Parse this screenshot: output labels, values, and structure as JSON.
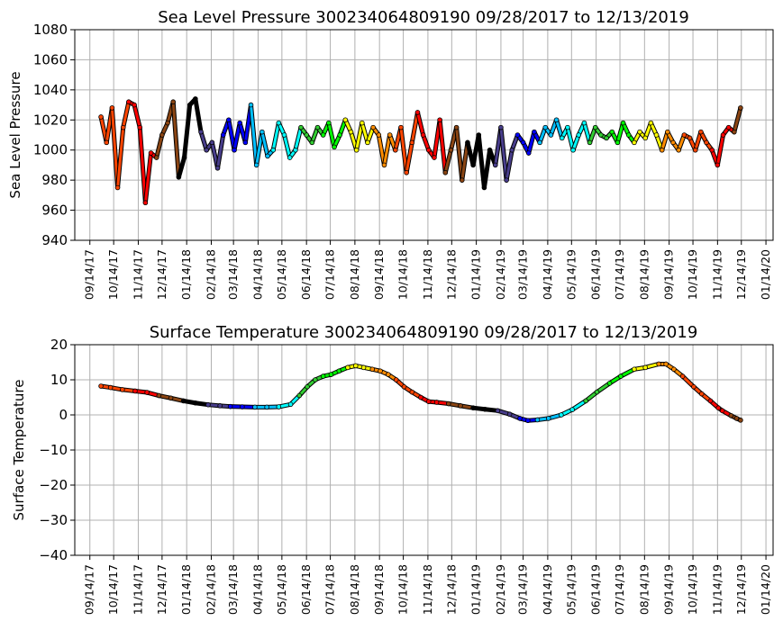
{
  "chart_data": [
    {
      "type": "scatter",
      "title": "Sea Level Pressure 300234064809190  09/28/2017 to 12/13/2019",
      "ylabel": "Sea Level Pressure",
      "xlabel": "",
      "ylim": [
        940,
        1080
      ],
      "yticks": [
        940,
        960,
        980,
        1000,
        1020,
        1040,
        1060,
        1080
      ],
      "xlim": [
        "2017-08-26",
        "2020-01-23"
      ],
      "grid": true,
      "x_tick_labels": [
        "09/14/17",
        "10/14/17",
        "11/14/17",
        "12/14/17",
        "01/14/18",
        "02/14/18",
        "03/14/18",
        "04/14/18",
        "05/14/18",
        "06/14/18",
        "07/14/18",
        "08/14/18",
        "09/14/18",
        "10/14/18",
        "11/14/18",
        "12/14/18",
        "01/14/19",
        "02/14/19",
        "03/14/19",
        "04/14/19",
        "05/14/19",
        "06/14/19",
        "07/14/19",
        "08/14/19",
        "09/14/19",
        "10/14/19",
        "11/14/19",
        "12/14/19",
        "01/14/20"
      ],
      "marker_colors_by_month": [
        "#ff4500",
        "#ff4500",
        "#ff0000",
        "#8b4513",
        "#000000",
        "#483d8b",
        "#0000ff",
        "#00bfff",
        "#00ffff",
        "#32cd32",
        "#00ff00",
        "#ffff00",
        "#ff8c00",
        "#ff4500",
        "#ff0000",
        "#8b4513",
        "#000000",
        "#483d8b",
        "#0000ff",
        "#00bfff",
        "#00ffff",
        "#32cd32",
        "#00ff00",
        "#ffff00",
        "#ff8c00",
        "#ff4500",
        "#ff0000",
        "#8b4513"
      ],
      "series": [
        {
          "x": [
            "2017-09-28",
            "2017-10-05",
            "2017-10-12",
            "2017-10-19",
            "2017-10-26",
            "2017-11-02",
            "2017-11-09",
            "2017-11-16",
            "2017-11-23",
            "2017-11-30",
            "2017-12-07",
            "2017-12-14",
            "2017-12-21",
            "2017-12-28",
            "2018-01-04",
            "2018-01-11",
            "2018-01-18",
            "2018-01-25",
            "2018-02-01",
            "2018-02-08",
            "2018-02-15",
            "2018-02-22",
            "2018-03-01",
            "2018-03-08",
            "2018-03-15",
            "2018-03-22",
            "2018-03-29",
            "2018-04-05",
            "2018-04-12",
            "2018-04-19",
            "2018-04-26",
            "2018-05-03",
            "2018-05-10",
            "2018-05-17",
            "2018-05-24",
            "2018-05-31",
            "2018-06-07",
            "2018-06-14",
            "2018-06-21",
            "2018-06-28",
            "2018-07-05",
            "2018-07-12",
            "2018-07-19",
            "2018-07-26",
            "2018-08-02",
            "2018-08-09",
            "2018-08-16",
            "2018-08-23",
            "2018-08-30",
            "2018-09-06",
            "2018-09-13",
            "2018-09-20",
            "2018-09-27",
            "2018-10-04",
            "2018-10-11",
            "2018-10-18",
            "2018-10-25",
            "2018-11-01",
            "2018-11-08",
            "2018-11-15",
            "2018-11-22",
            "2018-11-29",
            "2018-12-06",
            "2018-12-13",
            "2018-12-20",
            "2018-12-27",
            "2019-01-03",
            "2019-01-10",
            "2019-01-17",
            "2019-01-24",
            "2019-01-31",
            "2019-02-07",
            "2019-02-14",
            "2019-02-21",
            "2019-02-28",
            "2019-03-07",
            "2019-03-14",
            "2019-03-21",
            "2019-03-28",
            "2019-04-04",
            "2019-04-11",
            "2019-04-18",
            "2019-04-25",
            "2019-05-02",
            "2019-05-09",
            "2019-05-16",
            "2019-05-23",
            "2019-05-30",
            "2019-06-06",
            "2019-06-13",
            "2019-06-20",
            "2019-06-27",
            "2019-07-04",
            "2019-07-11",
            "2019-07-18",
            "2019-07-25",
            "2019-08-01",
            "2019-08-08",
            "2019-08-15",
            "2019-08-22",
            "2019-08-29",
            "2019-09-05",
            "2019-09-12",
            "2019-09-19",
            "2019-09-26",
            "2019-10-03",
            "2019-10-10",
            "2019-10-17",
            "2019-10-24",
            "2019-10-31",
            "2019-11-07",
            "2019-11-14",
            "2019-11-21",
            "2019-11-28",
            "2019-12-05",
            "2019-12-13"
          ],
          "y": [
            1022,
            1005,
            1028,
            975,
            1015,
            1032,
            1030,
            1015,
            965,
            998,
            995,
            1010,
            1018,
            1032,
            982,
            995,
            1030,
            1034,
            1012,
            1000,
            1005,
            988,
            1010,
            1020,
            1000,
            1018,
            1005,
            1030,
            990,
            1012,
            996,
            1000,
            1018,
            1010,
            995,
            1000,
            1015,
            1010,
            1005,
            1015,
            1010,
            1018,
            1002,
            1010,
            1020,
            1012,
            1000,
            1018,
            1005,
            1015,
            1010,
            990,
            1010,
            1000,
            1015,
            985,
            1005,
            1025,
            1010,
            1000,
            995,
            1020,
            985,
            1000,
            1015,
            980,
            1005,
            990,
            1010,
            975,
            1000,
            990,
            1015,
            980,
            1000,
            1010,
            1005,
            998,
            1012,
            1005,
            1015,
            1010,
            1020,
            1008,
            1015,
            1000,
            1010,
            1018,
            1005,
            1015,
            1010,
            1008,
            1012,
            1005,
            1018,
            1010,
            1005,
            1012,
            1008,
            1018,
            1010,
            1000,
            1012,
            1005,
            1000,
            1010,
            1008,
            1000,
            1012,
            1005,
            1000,
            990,
            1010,
            1015,
            1012,
            1028
          ]
        }
      ]
    },
    {
      "type": "scatter",
      "title": "Surface Temperature 300234064809190  09/28/2017 to 12/13/2019",
      "ylabel": "Surface Temperature",
      "xlabel": "",
      "ylim": [
        -40,
        20
      ],
      "yticks": [
        -40,
        -30,
        -20,
        -10,
        0,
        10,
        20
      ],
      "xlim": [
        "2017-08-26",
        "2020-01-23"
      ],
      "grid": true,
      "x_tick_labels": [
        "09/14/17",
        "10/14/17",
        "11/14/17",
        "12/14/17",
        "01/14/18",
        "02/14/18",
        "03/14/18",
        "04/14/18",
        "05/14/18",
        "06/14/18",
        "07/14/18",
        "08/14/18",
        "09/14/18",
        "10/14/18",
        "11/14/18",
        "12/14/18",
        "01/14/19",
        "02/14/19",
        "03/14/19",
        "04/14/19",
        "05/14/19",
        "06/14/19",
        "07/14/19",
        "08/14/19",
        "09/14/19",
        "10/14/19",
        "11/14/19",
        "12/14/19",
        "01/14/20"
      ],
      "marker_colors_by_month": [
        "#ff4500",
        "#ff4500",
        "#ff0000",
        "#8b4513",
        "#000000",
        "#483d8b",
        "#0000ff",
        "#00bfff",
        "#00ffff",
        "#32cd32",
        "#00ff00",
        "#ffff00",
        "#ff8c00",
        "#ff4500",
        "#ff0000",
        "#8b4513",
        "#000000",
        "#483d8b",
        "#0000ff",
        "#00bfff",
        "#00ffff",
        "#32cd32",
        "#00ff00",
        "#ffff00",
        "#ff8c00",
        "#ff4500",
        "#ff0000",
        "#8b4513"
      ],
      "series": [
        {
          "x": [
            "2017-09-28",
            "2017-10-10",
            "2017-10-25",
            "2017-11-10",
            "2017-11-25",
            "2017-12-10",
            "2017-12-25",
            "2018-01-10",
            "2018-01-25",
            "2018-02-10",
            "2018-02-25",
            "2018-03-10",
            "2018-03-25",
            "2018-04-10",
            "2018-04-25",
            "2018-05-10",
            "2018-05-25",
            "2018-06-05",
            "2018-06-15",
            "2018-06-25",
            "2018-07-05",
            "2018-07-15",
            "2018-07-25",
            "2018-08-05",
            "2018-08-15",
            "2018-08-25",
            "2018-09-05",
            "2018-09-15",
            "2018-09-25",
            "2018-10-05",
            "2018-10-15",
            "2018-10-25",
            "2018-11-05",
            "2018-11-15",
            "2018-11-25",
            "2018-12-10",
            "2018-12-25",
            "2019-01-10",
            "2019-01-25",
            "2019-02-10",
            "2019-02-25",
            "2019-03-10",
            "2019-03-20",
            "2019-04-01",
            "2019-04-15",
            "2019-05-01",
            "2019-05-15",
            "2019-06-01",
            "2019-06-15",
            "2019-07-01",
            "2019-07-15",
            "2019-08-01",
            "2019-08-15",
            "2019-09-01",
            "2019-09-10",
            "2019-09-20",
            "2019-10-01",
            "2019-10-15",
            "2019-10-25",
            "2019-11-05",
            "2019-11-15",
            "2019-11-20",
            "2019-12-01",
            "2019-12-08",
            "2019-12-13"
          ],
          "y": [
            8.2,
            7.8,
            7.2,
            6.8,
            6.4,
            5.5,
            4.8,
            4.0,
            3.4,
            2.9,
            2.6,
            2.4,
            2.3,
            2.2,
            2.2,
            2.3,
            3.0,
            5.5,
            8.0,
            10.0,
            11.0,
            11.5,
            12.5,
            13.5,
            14.0,
            13.5,
            13.0,
            12.5,
            11.5,
            10.0,
            8.0,
            6.5,
            5.0,
            3.8,
            3.6,
            3.2,
            2.6,
            2.0,
            1.6,
            1.2,
            0.2,
            -1.0,
            -1.6,
            -1.4,
            -1.0,
            0.0,
            1.5,
            4.0,
            6.5,
            9.0,
            11.0,
            13.0,
            13.5,
            14.5,
            14.5,
            13.0,
            11.0,
            8.0,
            6.0,
            4.0,
            2.0,
            1.2,
            -0.2,
            -1.0,
            -1.5
          ]
        }
      ]
    }
  ]
}
